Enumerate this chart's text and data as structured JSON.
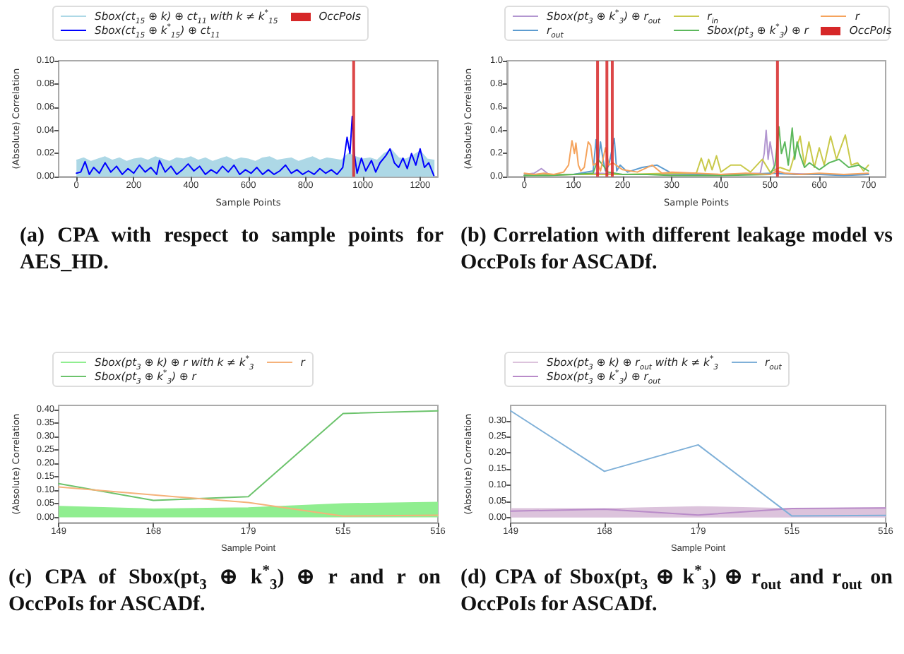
{
  "chart_data": [
    {
      "type": "line",
      "title": "(a) CPA with respect to sample points for AES_HD.",
      "xlabel": "Sample Points",
      "ylabel": "(Absolute) Correlation",
      "xlim": [
        -62,
        1262
      ],
      "ylim": [
        0,
        0.1
      ],
      "xticks": [
        0,
        200,
        400,
        600,
        800,
        1000,
        1200
      ],
      "yticks": [
        {
          "value": 0,
          "label": "0.00"
        },
        {
          "value": 0.02,
          "label": "0.02"
        },
        {
          "value": 0.04,
          "label": "0.04"
        },
        {
          "value": 0.06,
          "label": "0.06"
        },
        {
          "value": 0.08,
          "label": "0.08"
        },
        {
          "value": 0.1,
          "label": "0.10"
        }
      ],
      "legend": "top",
      "grid": false,
      "marker": "none",
      "line_style": "solid",
      "series": [
        {
          "type": "area",
          "name": "Sbox(ct$_{15}$ ⊕ k) ⊕ ct$_{11}$ with k ≠ k$^{*}$$_{15}$",
          "color": "#add8e6",
          "x": [
            0,
            25,
            50,
            75,
            100,
            125,
            150,
            175,
            200,
            225,
            250,
            275,
            300,
            325,
            350,
            375,
            400,
            425,
            450,
            475,
            500,
            525,
            550,
            575,
            600,
            625,
            650,
            675,
            700,
            725,
            750,
            775,
            800,
            825,
            850,
            875,
            900,
            925,
            950,
            975,
            1000,
            1025,
            1050,
            1075,
            1100,
            1125,
            1150,
            1175,
            1200,
            1225,
            1250
          ],
          "values": [
            0.014,
            0.016,
            0.013,
            0.015,
            0.017,
            0.014,
            0.016,
            0.013,
            0.015,
            0.016,
            0.014,
            0.017,
            0.015,
            0.013,
            0.016,
            0.015,
            0.017,
            0.014,
            0.016,
            0.013,
            0.015,
            0.017,
            0.014,
            0.016,
            0.015,
            0.013,
            0.016,
            0.017,
            0.014,
            0.015,
            0.016,
            0.013,
            0.015,
            0.017,
            0.014,
            0.016,
            0.015,
            0.014,
            0.02,
            0.017,
            0.015,
            0.016,
            0.014,
            0.02,
            0.023,
            0.016,
            0.015,
            0.018,
            0.022,
            0.015,
            0.014
          ]
        },
        {
          "name": "Sbox(ct$_{15}$ ⊕ k$^{*}$$_{15}$) ⊕ ct$_{11}$",
          "color": "#0000ff",
          "x": [
            0,
            15,
            30,
            45,
            60,
            80,
            100,
            120,
            140,
            160,
            180,
            200,
            220,
            240,
            260,
            280,
            290,
            310,
            330,
            350,
            370,
            390,
            410,
            430,
            450,
            470,
            490,
            510,
            530,
            550,
            570,
            590,
            610,
            630,
            650,
            670,
            690,
            710,
            730,
            750,
            770,
            790,
            810,
            830,
            850,
            870,
            890,
            910,
            930,
            945,
            955,
            963,
            970,
            980,
            995,
            1010,
            1030,
            1045,
            1060,
            1080,
            1095,
            1110,
            1125,
            1140,
            1155,
            1170,
            1185,
            1200,
            1215,
            1230,
            1248
          ],
          "values": [
            0.003,
            0.004,
            0.013,
            0.002,
            0.008,
            0.003,
            0.012,
            0.004,
            0.009,
            0.002,
            0.007,
            0.003,
            0.01,
            0.004,
            0.008,
            0.002,
            0.014,
            0.004,
            0.009,
            0.002,
            0.006,
            0.011,
            0.005,
            0.009,
            0.002,
            0.006,
            0.003,
            0.009,
            0.004,
            0.01,
            0.002,
            0.006,
            0.003,
            0.008,
            0.002,
            0.006,
            0.002,
            0.005,
            0.01,
            0.003,
            0.006,
            0.002,
            0.005,
            0.002,
            0.007,
            0.003,
            0.006,
            0.002,
            0.008,
            0.034,
            0.02,
            0.052,
            0.02,
            0.003,
            0.016,
            0.005,
            0.014,
            0.004,
            0.012,
            0.018,
            0.024,
            0.012,
            0.008,
            0.016,
            0.007,
            0.02,
            0.01,
            0.024,
            0.008,
            0.012,
            0.001
          ]
        },
        {
          "type": "bar",
          "name": "OccPoIs",
          "color": "#d62728",
          "x": [
            968
          ],
          "values": [
            0.1
          ]
        }
      ]
    },
    {
      "type": "line",
      "title": "(b) Correlation with different leakage model vs OccPoIs for ASCADf.",
      "xlabel": "Sample Points",
      "ylabel": "(Absolute) Correlation",
      "xlim": [
        -35,
        735
      ],
      "ylim": [
        0,
        1
      ],
      "xticks": [
        0,
        100,
        200,
        300,
        400,
        500,
        600,
        700
      ],
      "yticks": [
        {
          "value": 0,
          "label": "0.0"
        },
        {
          "value": 0.2,
          "label": "0.2"
        },
        {
          "value": 0.4,
          "label": "0.4"
        },
        {
          "value": 0.6,
          "label": "0.6"
        },
        {
          "value": 0.8,
          "label": "0.8"
        },
        {
          "value": 1,
          "label": "1.0"
        }
      ],
      "legend": "top",
      "grid": false,
      "marker": "none",
      "line_style": "solid",
      "series": [
        {
          "name": "Sbox(pt$_{3}$ ⊕ k$^{*}$$_{3}$) ⊕ r$_{out}$",
          "color": "#b296d0",
          "x": [
            0,
            20,
            35,
            50,
            100,
            150,
            200,
            300,
            400,
            480,
            488,
            492,
            496,
            500,
            510,
            520,
            600,
            700
          ],
          "values": [
            0.02,
            0.03,
            0.07,
            0.02,
            0.02,
            0.03,
            0.02,
            0.02,
            0.02,
            0.03,
            0.2,
            0.4,
            0.15,
            0.3,
            0.05,
            0.03,
            0.02,
            0.02
          ]
        },
        {
          "name": "r$_{out}$",
          "color": "#5d9cd0",
          "x": [
            0,
            50,
            100,
            140,
            146,
            150,
            155,
            160,
            165,
            172,
            183,
            188,
            195,
            210,
            240,
            270,
            300,
            350,
            400,
            450,
            500,
            550,
            600,
            650,
            700
          ],
          "values": [
            0.01,
            0.02,
            0.02,
            0.05,
            0.32,
            0.1,
            0.3,
            0.15,
            0.05,
            0.1,
            0.33,
            0.05,
            0.1,
            0.04,
            0.08,
            0.1,
            0.03,
            0.02,
            0.02,
            0.02,
            0.03,
            0.02,
            0.02,
            0.01,
            0.02
          ]
        },
        {
          "name": "r$_{in}$",
          "color": "#c9c94a",
          "x": [
            0,
            100,
            200,
            300,
            350,
            360,
            368,
            375,
            382,
            391,
            400,
            420,
            440,
            460,
            484,
            500,
            520,
            540,
            561,
            570,
            579,
            590,
            600,
            610,
            623,
            635,
            653,
            665,
            678,
            690,
            700
          ],
          "values": [
            0.01,
            0.02,
            0.02,
            0.03,
            0.03,
            0.16,
            0.05,
            0.15,
            0.06,
            0.18,
            0.04,
            0.1,
            0.1,
            0.04,
            0.15,
            0.04,
            0.08,
            0.05,
            0.35,
            0.1,
            0.3,
            0.08,
            0.25,
            0.1,
            0.35,
            0.15,
            0.36,
            0.1,
            0.12,
            0.05,
            0.1
          ]
        },
        {
          "name": "Sbox(pt$_{3}$ ⊕ k$^{*}$$_{3}$) ⊕ r",
          "color": "#5cb85c",
          "x": [
            0,
            50,
            100,
            140,
            150,
            160,
            170,
            200,
            250,
            300,
            400,
            500,
            510,
            518,
            523,
            530,
            537,
            545,
            550,
            555,
            560,
            570,
            580,
            600,
            620,
            640,
            660,
            680,
            700
          ],
          "values": [
            0.01,
            0.01,
            0.02,
            0.03,
            0.15,
            0.1,
            0.04,
            0.02,
            0.02,
            0.01,
            0.01,
            0.02,
            0.1,
            0.43,
            0.2,
            0.3,
            0.1,
            0.42,
            0.15,
            0.3,
            0.2,
            0.08,
            0.12,
            0.06,
            0.12,
            0.15,
            0.08,
            0.1,
            0.05
          ]
        },
        {
          "name": "r",
          "color": "#f5a35c",
          "x": [
            0,
            20,
            40,
            60,
            80,
            90,
            97,
            102,
            105,
            110,
            115,
            122,
            130,
            135,
            140,
            148,
            155,
            165,
            172,
            180,
            200,
            230,
            260,
            280,
            300,
            350,
            400,
            450,
            500,
            515,
            530,
            560,
            600,
            650,
            700
          ],
          "values": [
            0.03,
            0.02,
            0.03,
            0.02,
            0.04,
            0.1,
            0.31,
            0.2,
            0.29,
            0.1,
            0.05,
            0.08,
            0.3,
            0.27,
            0.1,
            0.12,
            0.05,
            0.25,
            0.1,
            0.12,
            0.06,
            0.04,
            0.1,
            0.03,
            0.04,
            0.03,
            0.02,
            0.03,
            0.02,
            0.05,
            0.03,
            0.02,
            0.03,
            0.02,
            0.03
          ]
        },
        {
          "type": "bar",
          "name": "OccPoIs",
          "color": "#d62728",
          "x": [
            149,
            168,
            179,
            515
          ],
          "values": [
            1,
            1,
            1,
            1
          ]
        }
      ]
    },
    {
      "type": "line",
      "title": "(c) CPA of Sbox(pt$_{3}$ ⊕ k$^{*}$$_{3}$) ⊕ r and r on OccPoIs for ASCADf.",
      "xlabel": "Sample Point",
      "ylabel": "(Absolute) Correlation",
      "categories": [
        "149",
        "168",
        "179",
        "515",
        "516"
      ],
      "ylim": [
        -0.02,
        0.415
      ],
      "yticks": [
        {
          "value": 0,
          "label": "0.00"
        },
        {
          "value": 0.05,
          "label": "0.05"
        },
        {
          "value": 0.1,
          "label": "0.10"
        },
        {
          "value": 0.15,
          "label": "0.15"
        },
        {
          "value": 0.2,
          "label": "0.20"
        },
        {
          "value": 0.25,
          "label": "0.25"
        },
        {
          "value": 0.3,
          "label": "0.30"
        },
        {
          "value": 0.35,
          "label": "0.35"
        },
        {
          "value": 0.4,
          "label": "0.40"
        }
      ],
      "legend": "top",
      "grid": false,
      "marker": "none",
      "line_style": "solid",
      "series": [
        {
          "type": "area",
          "name": "Sbox(pt$_{3}$ ⊕ k) ⊕ r with k ≠ k$^{*}$$_{3}$",
          "color": "#90ee90",
          "values": [
            0.04,
            0.03,
            0.035,
            0.05,
            0.055
          ]
        },
        {
          "name": "Sbox(pt$_{3}$ ⊕ k$^{*}$$_{3}$) ⊕ r",
          "color": "#6cc36c",
          "values": [
            0.125,
            0.063,
            0.077,
            0.385,
            0.395
          ]
        },
        {
          "name": "r",
          "color": "#f5b27a",
          "values": [
            0.113,
            0.083,
            0.055,
            0.005,
            0.008
          ]
        }
      ]
    },
    {
      "type": "line",
      "title": "(d) CPA of Sbox(pt$_{3}$ ⊕ k$^{*}$$_{3}$) ⊕ r$_{out}$ and r$_{out}$ on OccPoIs for ASCADf.",
      "xlabel": "Sample Point",
      "ylabel": "(Absolute) Correlation",
      "categories": [
        "149",
        "168",
        "179",
        "515",
        "516"
      ],
      "ylim": [
        -0.016,
        0.347
      ],
      "yticks": [
        {
          "value": 0,
          "label": "0.00"
        },
        {
          "value": 0.05,
          "label": "0.05"
        },
        {
          "value": 0.1,
          "label": "0.10"
        },
        {
          "value": 0.15,
          "label": "0.15"
        },
        {
          "value": 0.2,
          "label": "0.20"
        },
        {
          "value": 0.25,
          "label": "0.25"
        },
        {
          "value": 0.3,
          "label": "0.30"
        }
      ],
      "legend": "top",
      "grid": false,
      "marker": "none",
      "line_style": "solid",
      "series": [
        {
          "type": "area",
          "name": "Sbox(pt$_{3}$ ⊕ k) ⊕ r$_{out}$ with k ≠ k$^{*}$$_{3}$",
          "color": "#dcc3dc",
          "values": [
            0.027,
            0.027,
            0.033,
            0.027,
            0.03
          ]
        },
        {
          "name": "Sbox(pt$_{3}$ ⊕ k$^{*}$$_{3}$) ⊕ r$_{out}$",
          "color": "#b98bc9",
          "values": [
            0.02,
            0.026,
            0.008,
            0.028,
            0.03
          ]
        },
        {
          "name": "r$_{out}$",
          "color": "#7fb0d8",
          "values": [
            0.33,
            0.143,
            0.225,
            0.005,
            0.007
          ]
        }
      ]
    }
  ]
}
